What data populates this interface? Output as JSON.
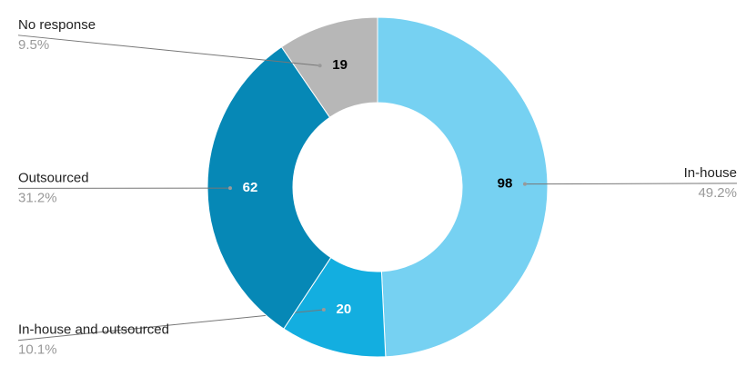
{
  "chart_data": {
    "type": "donut",
    "categories": [
      "In-house",
      "In-house and outsourced",
      "Outsourced",
      "No response"
    ],
    "values": [
      98,
      20,
      62,
      19
    ],
    "percent_labels": [
      "49.2%",
      "10.1%",
      "31.2%",
      "9.5%"
    ],
    "colors": [
      "#76d1f2",
      "#13aee0",
      "#0688b6",
      "#b7b7b7"
    ]
  }
}
